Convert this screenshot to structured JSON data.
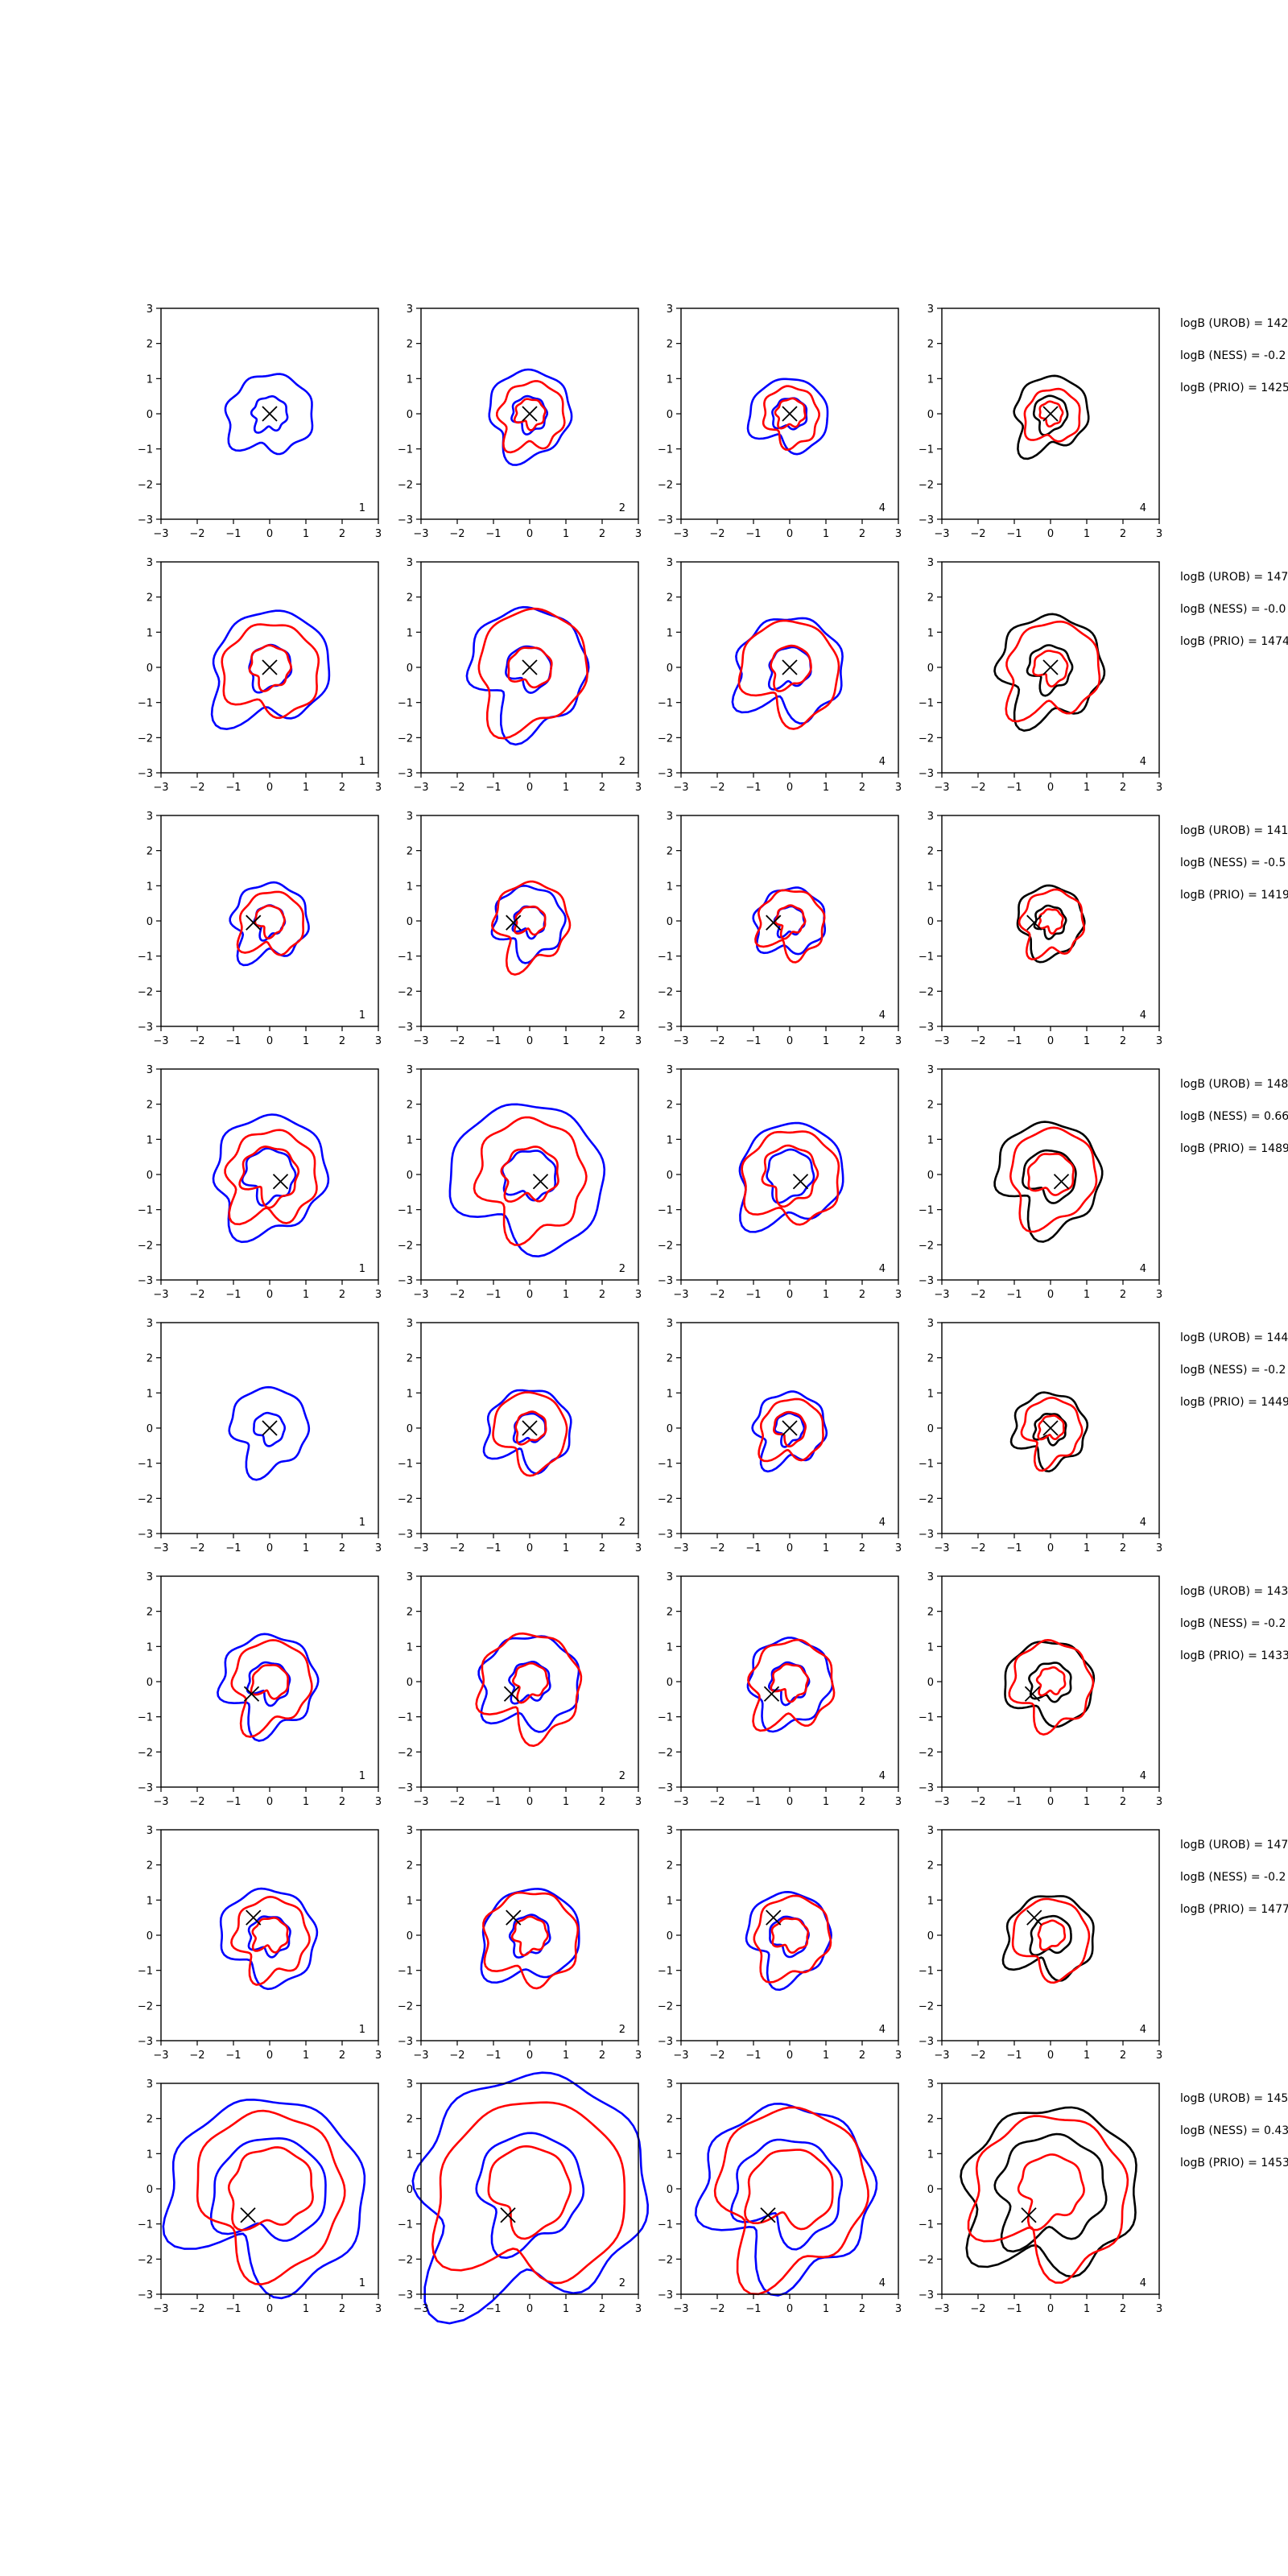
{
  "figure": {
    "background": "#ffffff"
  },
  "colors": {
    "blue": "#0000ff",
    "red": "#ff0000",
    "black": "#000000"
  },
  "panel_labels": [
    "1",
    "2",
    "4",
    "4"
  ],
  "axis": {
    "range": [
      -3,
      3
    ],
    "ticks": [
      -3,
      -2,
      -1,
      0,
      1,
      2,
      3
    ],
    "tick_labels": [
      "−3",
      "−2",
      "−1",
      "0",
      "1",
      "2",
      "3"
    ]
  },
  "chart_data": [
    {
      "type": "contour",
      "row": 1,
      "marker": [
        0,
        0
      ],
      "inner": 0.48,
      "outer": 1.15,
      "red_outer": 0.9,
      "red_inner": 0.42,
      "spread": 1.0,
      "annotations": [
        "logB (UROB) = 142",
        "logB (NESS) = -0.2",
        "logB (PRIO) = 1425"
      ]
    },
    {
      "type": "contour",
      "row": 2,
      "marker": [
        0,
        0
      ],
      "inner": 0.6,
      "outer": 1.6,
      "red_outer": 1.55,
      "red_inner": 0.6,
      "spread": 1.0,
      "annotations": [
        "logB (UROB) = 147",
        "logB (NESS) = -0.0",
        "logB (PRIO) = 1474"
      ]
    },
    {
      "type": "contour",
      "row": 3,
      "marker": [
        -0.45,
        -0.05
      ],
      "inner": 0.42,
      "outer": 1.05,
      "red_outer": 1.05,
      "red_inner": 0.42,
      "spread": 0.9,
      "annotations": [
        "logB (UROB) = 141",
        "logB (NESS) = -0.5",
        "logB (PRIO) = 1419"
      ]
    },
    {
      "type": "contour",
      "row": 4,
      "marker": [
        0.3,
        -0.2
      ],
      "inner": 0.7,
      "outer": 1.6,
      "red_outer": 1.5,
      "red_inner": 0.8,
      "spread": 1.25,
      "annotations": [
        "logB (UROB) = 148",
        "logB (NESS) = 0.66",
        "logB (PRIO) = 1489"
      ]
    },
    {
      "type": "contour",
      "row": 5,
      "marker": [
        0,
        0
      ],
      "inner": 0.42,
      "outer": 1.1,
      "red_outer": 1.0,
      "red_inner": 0.45,
      "spread": 1.0,
      "annotations": [
        "logB (UROB) = 144",
        "logB (NESS) = -0.2",
        "logB (PRIO) = 1449"
      ]
    },
    {
      "type": "contour",
      "row": 6,
      "marker": [
        -0.5,
        -0.35
      ],
      "inner": 0.55,
      "outer": 1.3,
      "red_outer": 1.35,
      "red_inner": 0.5,
      "spread": 1.0,
      "annotations": [
        "logB (UROB) = 143",
        "logB (NESS) = -0.2",
        "logB (PRIO) = 1433"
      ]
    },
    {
      "type": "contour",
      "row": 7,
      "marker": [
        -0.45,
        0.5
      ],
      "inner": 0.55,
      "outer": 1.3,
      "red_outer": 1.25,
      "red_inner": 0.5,
      "spread": 1.0,
      "annotations": [
        "logB (UROB) = 147",
        "logB (NESS) = -0.2",
        "logB (PRIO) = 1477"
      ]
    },
    {
      "type": "contour",
      "row": 8,
      "marker": [
        -0.6,
        -0.75
      ],
      "inner": 1.5,
      "outer": 2.6,
      "red_outer": 2.5,
      "red_inner": 1.2,
      "spread": 1.2,
      "annotations": [
        "logB (UROB) = 145",
        "logB (NESS) = 0.43",
        "logB (PRIO) = 1453"
      ]
    }
  ]
}
